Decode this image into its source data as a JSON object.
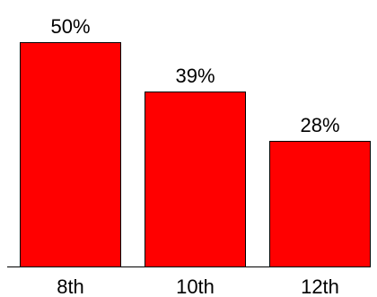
{
  "chart_data": {
    "type": "bar",
    "categories": [
      "8th",
      "10th",
      "12th"
    ],
    "values": [
      50,
      39,
      28
    ],
    "value_labels": [
      "50%",
      "39%",
      "28%"
    ],
    "title": "",
    "xlabel": "",
    "ylabel": "",
    "ylim": [
      0,
      50
    ],
    "grid": false,
    "legend": "none",
    "colors": {
      "bar_fill": "#ff0000",
      "bar_stroke": "#000000",
      "text": "#000000",
      "background": "#ffffff"
    }
  }
}
